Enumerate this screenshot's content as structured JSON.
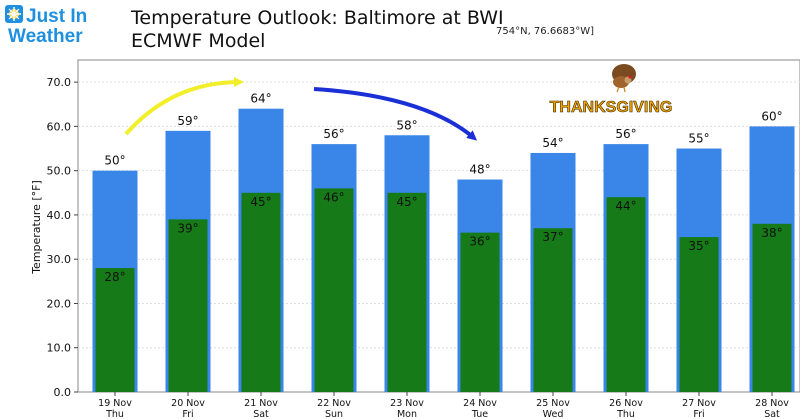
{
  "logo": {
    "line1": "Just In",
    "line2": "Weather",
    "brand_color": "#1f8fe0",
    "icon": "snowflake-sun-icon"
  },
  "header": {
    "title": "Temperature Outlook: Baltimore at BWI",
    "subtitle": "ECMWF Model",
    "coords": "754°N, 76.6683°W]"
  },
  "annotation": {
    "holiday_label": "THANKSGIVING",
    "holiday_color": "#f5a300",
    "icon": "turkey-icon",
    "arrow_up_color": "#f2ee2a",
    "arrow_down_color": "#1a2fd6"
  },
  "chart_data": {
    "type": "bar",
    "ylabel": "Temperature [°F]",
    "ylim": [
      0,
      75
    ],
    "yticks": [
      "0.0",
      "10.0",
      "20.0",
      "30.0",
      "40.0",
      "50.0",
      "60.0",
      "70.0"
    ],
    "grid": true,
    "categories": [
      {
        "date": "19 Nov",
        "day": "Thu"
      },
      {
        "date": "20 Nov",
        "day": "Fri"
      },
      {
        "date": "21 Nov",
        "day": "Sat"
      },
      {
        "date": "22 Nov",
        "day": "Sun"
      },
      {
        "date": "23 Nov",
        "day": "Mon"
      },
      {
        "date": "24 Nov",
        "day": "Tue"
      },
      {
        "date": "25 Nov",
        "day": "Wed"
      },
      {
        "date": "26 Nov",
        "day": "Thu"
      },
      {
        "date": "27 Nov",
        "day": "Fri"
      },
      {
        "date": "28 Nov",
        "day": "Sat"
      }
    ],
    "series": [
      {
        "values": [
          50,
          59,
          64,
          56,
          58,
          48,
          54,
          56,
          55,
          60
        ],
        "color": "#3a86e8",
        "labels": [
          "50°",
          "59°",
          "64°",
          "56°",
          "58°",
          "48°",
          "54°",
          "56°",
          "55°",
          "60°"
        ]
      },
      {
        "values": [
          28,
          39,
          45,
          46,
          45,
          36,
          37,
          44,
          35,
          38
        ],
        "color": "#157a17",
        "labels": [
          "28°",
          "39°",
          "45°",
          "46°",
          "45°",
          "36°",
          "37°",
          "44°",
          "35°",
          "38°"
        ]
      }
    ]
  }
}
